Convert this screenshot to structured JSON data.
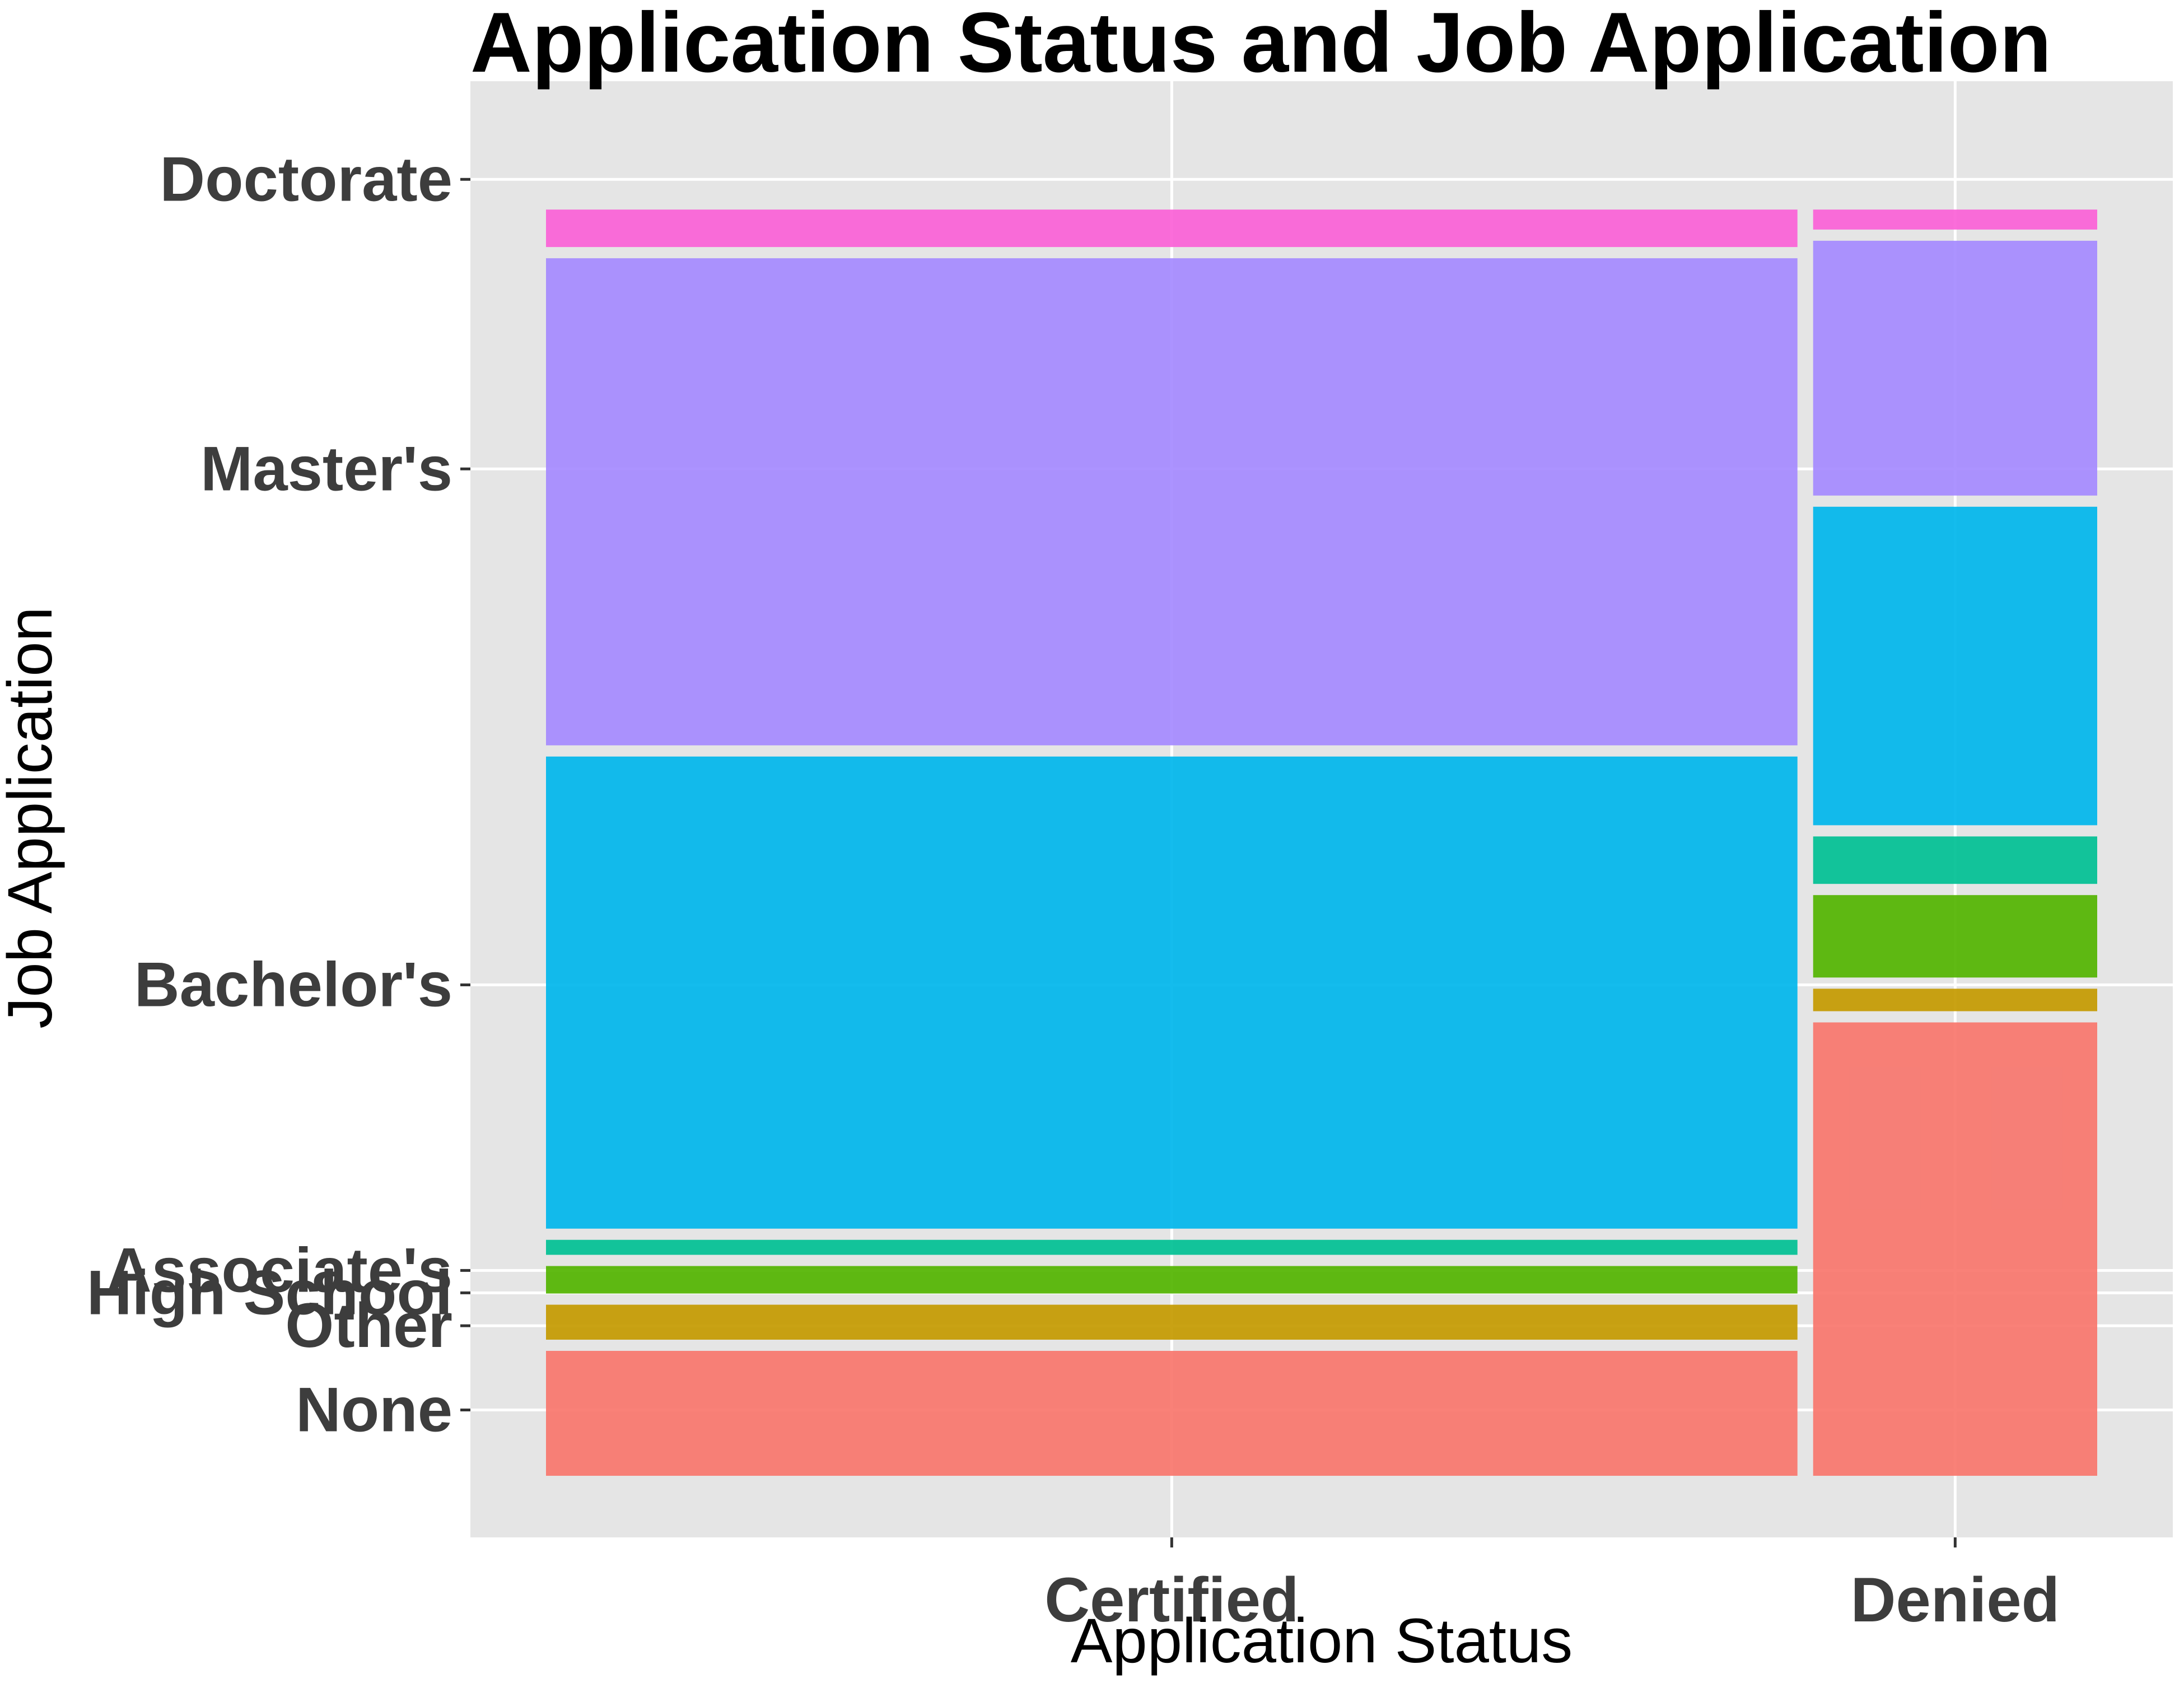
{
  "chart_data": {
    "type": "mosaic",
    "title": "Application Status and Job Application",
    "xlabel": "Application Status",
    "ylabel": "Job Application",
    "categories": [
      "Certified",
      "Denied"
    ],
    "category_share": [
      0.815,
      0.185
    ],
    "segments": [
      "None",
      "Other",
      "High School",
      "Associate's",
      "Bachelor's",
      "Master's",
      "Doctorate"
    ],
    "proportions": {
      "Certified": [
        0.1,
        0.028,
        0.022,
        0.012,
        0.378,
        0.39,
        0.03
      ],
      "Denied": [
        0.363,
        0.018,
        0.066,
        0.038,
        0.255,
        0.204,
        0.016
      ]
    },
    "y_ticks": [
      {
        "label": "None",
        "position": 0.05
      },
      {
        "label": "Other",
        "position": 0.114
      },
      {
        "label": "High School",
        "position": 0.139
      },
      {
        "label": "Associate's",
        "position": 0.156
      },
      {
        "label": "Bachelor's",
        "position": 0.373
      },
      {
        "label": "Master's",
        "position": 0.765
      },
      {
        "label": "Doctorate",
        "position": 0.985
      }
    ],
    "colors": {
      "None": "#F8766D",
      "Other": "#C49A00",
      "High School": "#53B400",
      "Associate's": "#00C094",
      "Bachelor's": "#00B6EB",
      "Master's": "#A58AFF",
      "Doctorate": "#FB61D7"
    },
    "panel_background": "#E5E5E5",
    "grid": true,
    "legend": "none"
  }
}
